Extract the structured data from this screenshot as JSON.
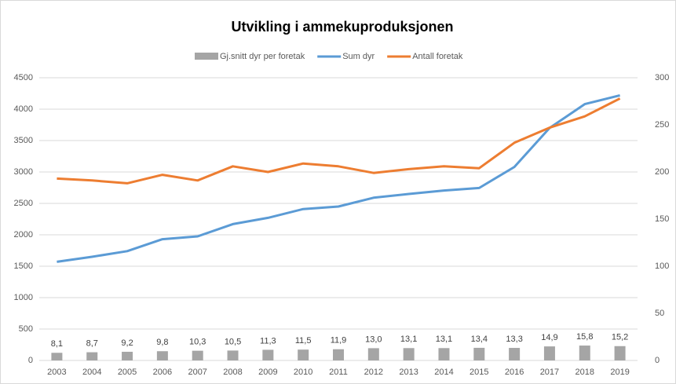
{
  "chart_data": {
    "type": "combo",
    "title": "Utvikling i ammekuproduksjonen",
    "categories": [
      "2003",
      "2004",
      "2005",
      "2006",
      "2007",
      "2008",
      "2009",
      "2010",
      "2011",
      "2012",
      "2013",
      "2014",
      "2015",
      "2016",
      "2017",
      "2018",
      "2019"
    ],
    "series": [
      {
        "name": "Gj.snitt dyr per foretak",
        "type": "bar",
        "axis": "y2",
        "color": "#a5a5a5",
        "values": [
          8.1,
          8.7,
          9.2,
          9.8,
          10.3,
          10.5,
          11.3,
          11.5,
          11.9,
          13.0,
          13.1,
          13.1,
          13.4,
          13.3,
          14.9,
          15.8,
          15.2
        ],
        "value_labels": [
          "8,1",
          "8,7",
          "9,2",
          "9,8",
          "10,3",
          "10,5",
          "11,3",
          "11,5",
          "11,9",
          "13,0",
          "13,1",
          "13,1",
          "13,4",
          "13,3",
          "14,9",
          "15,8",
          "15,2"
        ]
      },
      {
        "name": "Sum dyr",
        "type": "line",
        "axis": "y",
        "color": "#5b9bd5",
        "values": [
          1570,
          1650,
          1740,
          1930,
          1975,
          2170,
          2270,
          2410,
          2450,
          2590,
          2650,
          2705,
          2745,
          3080,
          3700,
          4080,
          4220
        ]
      },
      {
        "name": "Antall foretak",
        "type": "line",
        "axis": "y2",
        "color": "#ed7d31",
        "values": [
          193,
          191,
          188,
          197,
          191,
          206,
          200,
          209,
          206,
          199,
          203,
          206,
          204,
          231,
          247,
          259,
          278
        ]
      }
    ],
    "ylim": [
      0,
      4500
    ],
    "yticks": [
      0,
      500,
      1000,
      1500,
      2000,
      2500,
      3000,
      3500,
      4000,
      4500
    ],
    "y2lim": [
      0,
      300
    ],
    "y2ticks": [
      0,
      50,
      100,
      150,
      200,
      250,
      300
    ],
    "grid": true,
    "legend": "top"
  }
}
